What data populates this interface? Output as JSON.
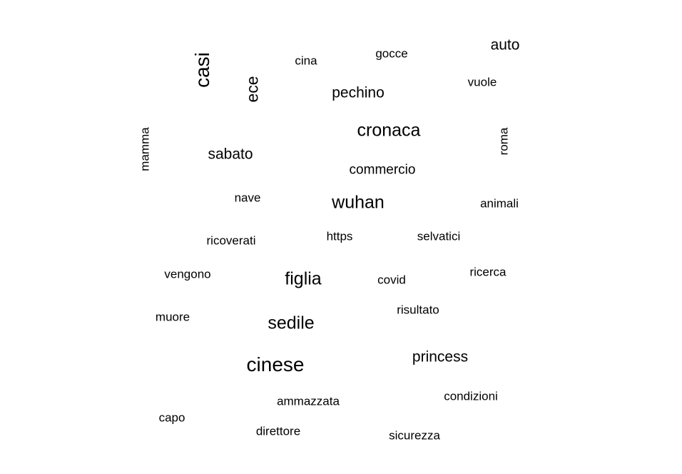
{
  "background_color": "#ffffff",
  "text_color": "#000000",
  "words": [
    {
      "text": "cinese",
      "rotated": false
    },
    {
      "text": "figlia",
      "rotated": false
    },
    {
      "text": "cronaca",
      "rotated": false
    },
    {
      "text": "wuhan",
      "rotated": false
    },
    {
      "text": "sedile",
      "rotated": false
    },
    {
      "text": "princess",
      "rotated": false
    },
    {
      "text": "sabato",
      "rotated": false
    },
    {
      "text": "pechino",
      "rotated": false
    },
    {
      "text": "auto",
      "rotated": false
    },
    {
      "text": "commercio",
      "rotated": false
    },
    {
      "text": "nave",
      "rotated": false
    },
    {
      "text": "animali",
      "rotated": false
    },
    {
      "text": "https",
      "rotated": false
    },
    {
      "text": "selvatici",
      "rotated": false
    },
    {
      "text": "ricoverati",
      "rotated": false
    },
    {
      "text": "vengono",
      "rotated": false
    },
    {
      "text": "covid",
      "rotated": false
    },
    {
      "text": "ricerca",
      "rotated": false
    },
    {
      "text": "muore",
      "rotated": false
    },
    {
      "text": "risultato",
      "rotated": false
    },
    {
      "text": "ammazzata",
      "rotated": false
    },
    {
      "text": "condizioni",
      "rotated": false
    },
    {
      "text": "capo",
      "rotated": false
    },
    {
      "text": "direttore",
      "rotated": false
    },
    {
      "text": "sicurezza",
      "rotated": false
    },
    {
      "text": "cina",
      "rotated": false
    },
    {
      "text": "gocce",
      "rotated": false
    },
    {
      "text": "vuole",
      "rotated": false
    },
    {
      "text": "casi",
      "rotated": true
    },
    {
      "text": "ece",
      "rotated": true
    },
    {
      "text": "mamma",
      "rotated": true
    },
    {
      "text": "roma",
      "rotated": true
    }
  ]
}
